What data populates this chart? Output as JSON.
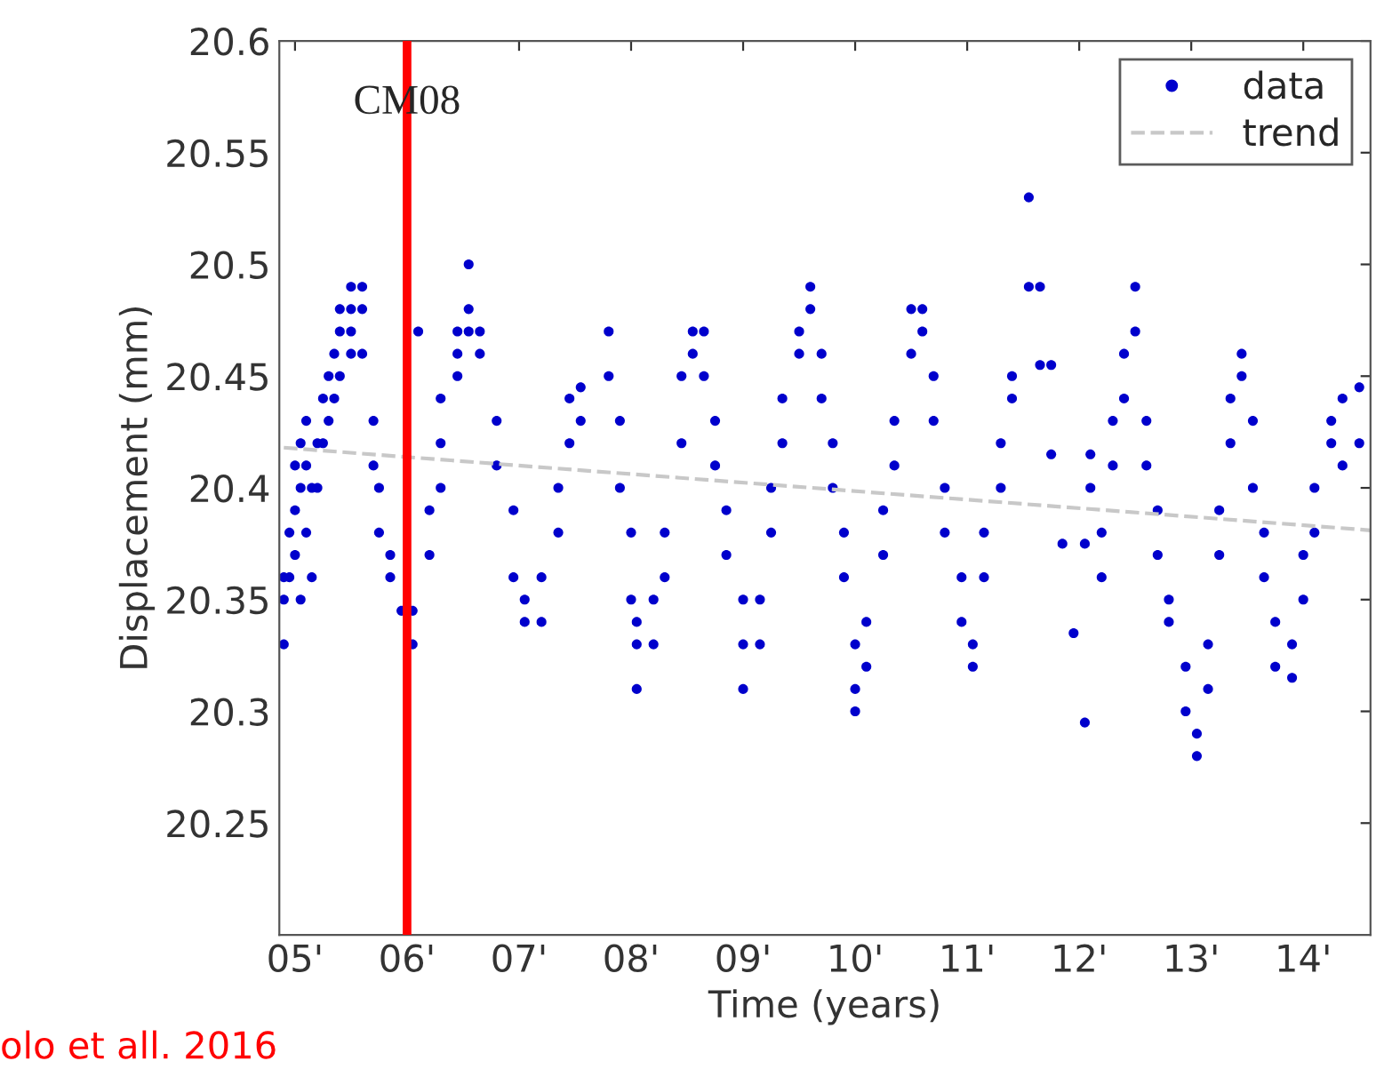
{
  "chart_data": {
    "type": "scatter",
    "xlabel": "Time (years)",
    "ylabel": "Displacement (mm)",
    "xlim": [
      4.86,
      14.6
    ],
    "ylim": [
      20.2,
      20.6
    ],
    "xticks": [
      {
        "value": 5,
        "label": "05'"
      },
      {
        "value": 6,
        "label": "06'"
      },
      {
        "value": 7,
        "label": "07'"
      },
      {
        "value": 8,
        "label": "08'"
      },
      {
        "value": 9,
        "label": "09'"
      },
      {
        "value": 10,
        "label": "10'"
      },
      {
        "value": 11,
        "label": "11'"
      },
      {
        "value": 12,
        "label": "12'"
      },
      {
        "value": 13,
        "label": "13'"
      },
      {
        "value": 14,
        "label": "14'"
      }
    ],
    "yticks": [
      20.25,
      20.3,
      20.35,
      20.4,
      20.45,
      20.5,
      20.55,
      20.6
    ],
    "grid": false,
    "legend": "top right",
    "ref_lines": [
      {
        "axis": "x",
        "value": 6,
        "label": "CM08",
        "color": "#ff0000",
        "line_style": "solid"
      }
    ],
    "annotations": [
      "olo et all. 2016"
    ],
    "series": [
      {
        "name": "data",
        "color": "#0000cc",
        "marker": "circle",
        "x": [
          4.9,
          4.9,
          4.9,
          4.95,
          4.95,
          5.0,
          5.0,
          5.0,
          5.05,
          5.05,
          5.05,
          5.1,
          5.1,
          5.1,
          5.15,
          5.15,
          5.2,
          5.2,
          5.25,
          5.25,
          5.3,
          5.3,
          5.35,
          5.35,
          5.4,
          5.4,
          5.4,
          5.5,
          5.5,
          5.5,
          5.5,
          5.6,
          5.6,
          5.6,
          5.7,
          5.7,
          5.75,
          5.75,
          5.85,
          5.85,
          5.95,
          6.05,
          6.05,
          6.1,
          6.2,
          6.2,
          6.3,
          6.3,
          6.3,
          6.45,
          6.45,
          6.45,
          6.55,
          6.55,
          6.55,
          6.65,
          6.65,
          6.8,
          6.8,
          6.95,
          6.95,
          7.05,
          7.05,
          7.2,
          7.2,
          7.35,
          7.35,
          7.45,
          7.45,
          7.55,
          7.55,
          7.8,
          7.8,
          7.9,
          7.9,
          8.0,
          8.0,
          8.05,
          8.05,
          8.05,
          8.2,
          8.2,
          8.3,
          8.3,
          8.45,
          8.45,
          8.55,
          8.55,
          8.65,
          8.65,
          8.75,
          8.75,
          8.85,
          8.85,
          9.0,
          9.0,
          9.0,
          9.15,
          9.15,
          9.25,
          9.25,
          9.35,
          9.35,
          9.5,
          9.5,
          9.6,
          9.6,
          9.7,
          9.7,
          9.8,
          9.8,
          9.9,
          9.9,
          10.0,
          10.0,
          10.0,
          10.1,
          10.1,
          10.25,
          10.25,
          10.35,
          10.35,
          10.5,
          10.5,
          10.6,
          10.6,
          10.7,
          10.7,
          10.8,
          10.8,
          10.95,
          10.95,
          11.05,
          11.05,
          11.15,
          11.15,
          11.3,
          11.3,
          11.4,
          11.4,
          11.55,
          11.55,
          11.65,
          11.65,
          11.75,
          11.75,
          11.85,
          11.95,
          12.05,
          12.05,
          12.1,
          12.1,
          12.2,
          12.2,
          12.3,
          12.3,
          12.4,
          12.4,
          12.5,
          12.5,
          12.6,
          12.6,
          12.7,
          12.7,
          12.8,
          12.8,
          12.95,
          12.95,
          13.05,
          13.05,
          13.15,
          13.15,
          13.25,
          13.25,
          13.35,
          13.35,
          13.45,
          13.45,
          13.55,
          13.55,
          13.65,
          13.65,
          13.75,
          13.75,
          13.9,
          13.9,
          14.0,
          14.0,
          14.1,
          14.1,
          14.25,
          14.25,
          14.35,
          14.35,
          14.5,
          14.5
        ],
        "values": [
          20.33,
          20.35,
          20.36,
          20.36,
          20.38,
          20.37,
          20.39,
          20.41,
          20.35,
          20.4,
          20.42,
          20.38,
          20.41,
          20.43,
          20.36,
          20.4,
          20.4,
          20.42,
          20.42,
          20.44,
          20.43,
          20.45,
          20.44,
          20.46,
          20.45,
          20.47,
          20.48,
          20.46,
          20.47,
          20.48,
          20.49,
          20.46,
          20.48,
          20.49,
          20.43,
          20.41,
          20.4,
          20.38,
          20.36,
          20.37,
          20.345,
          20.345,
          20.33,
          20.47,
          20.37,
          20.39,
          20.4,
          20.42,
          20.44,
          20.45,
          20.46,
          20.47,
          20.47,
          20.48,
          20.5,
          20.46,
          20.47,
          20.43,
          20.41,
          20.39,
          20.36,
          20.35,
          20.34,
          20.36,
          20.34,
          20.38,
          20.4,
          20.42,
          20.44,
          20.43,
          20.445,
          20.47,
          20.45,
          20.43,
          20.4,
          20.38,
          20.35,
          20.34,
          20.33,
          20.31,
          20.35,
          20.33,
          20.36,
          20.38,
          20.42,
          20.45,
          20.46,
          20.47,
          20.47,
          20.45,
          20.43,
          20.41,
          20.39,
          20.37,
          20.35,
          20.33,
          20.31,
          20.35,
          20.33,
          20.38,
          20.4,
          20.42,
          20.44,
          20.46,
          20.47,
          20.48,
          20.49,
          20.46,
          20.44,
          20.42,
          20.4,
          20.38,
          20.36,
          20.33,
          20.31,
          20.3,
          20.34,
          20.32,
          20.37,
          20.39,
          20.41,
          20.43,
          20.46,
          20.48,
          20.47,
          20.48,
          20.45,
          20.43,
          20.4,
          20.38,
          20.36,
          20.34,
          20.33,
          20.32,
          20.36,
          20.38,
          20.4,
          20.42,
          20.44,
          20.45,
          20.49,
          20.53,
          20.49,
          20.455,
          20.455,
          20.415,
          20.375,
          20.335,
          20.295,
          20.375,
          20.4,
          20.415,
          20.38,
          20.36,
          20.41,
          20.43,
          20.44,
          20.46,
          20.47,
          20.49,
          20.43,
          20.41,
          20.39,
          20.37,
          20.35,
          20.34,
          20.32,
          20.3,
          20.29,
          20.28,
          20.31,
          20.33,
          20.37,
          20.39,
          20.42,
          20.44,
          20.45,
          20.46,
          20.43,
          20.4,
          20.38,
          20.36,
          20.34,
          20.32,
          20.315,
          20.33,
          20.35,
          20.37,
          20.38,
          20.4,
          20.42,
          20.43,
          20.44,
          20.41,
          20.42,
          20.445
        ]
      },
      {
        "name": "trend",
        "type": "line",
        "color": "#c8c8c8",
        "line_style": "dashed",
        "marker": "none",
        "x": [
          4.9,
          14.6
        ],
        "values": [
          20.418,
          20.381
        ]
      }
    ]
  }
}
